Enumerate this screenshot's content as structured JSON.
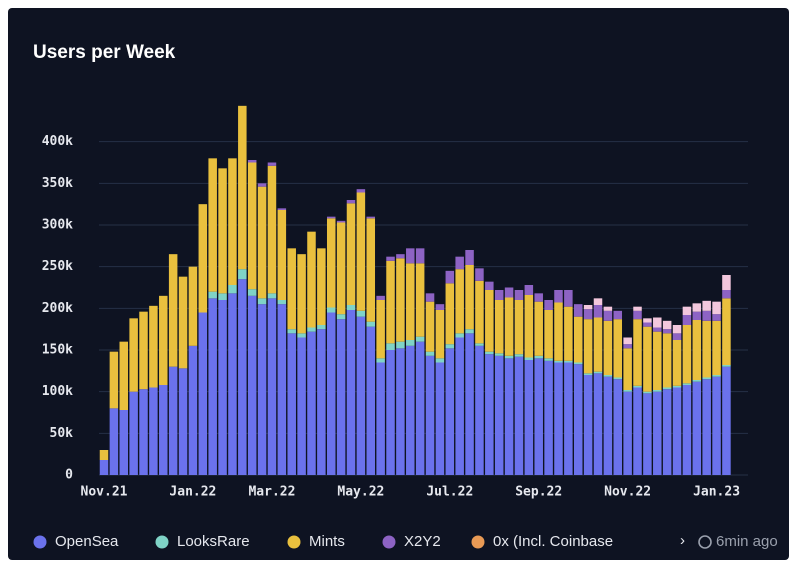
{
  "chart_data": {
    "type": "stacked_bar",
    "title": "Users per Week",
    "categories": [
      "Nov.21",
      null,
      null,
      null,
      null,
      null,
      null,
      null,
      null,
      "Jan.22",
      null,
      null,
      null,
      null,
      null,
      null,
      null,
      "Mar.22",
      null,
      null,
      null,
      null,
      null,
      null,
      null,
      null,
      "May.22",
      null,
      null,
      null,
      null,
      null,
      null,
      null,
      null,
      "Jul.22",
      null,
      null,
      null,
      null,
      null,
      null,
      null,
      null,
      "Sep.22",
      null,
      null,
      null,
      null,
      null,
      null,
      null,
      null,
      "Nov.22",
      null,
      null,
      null,
      null,
      null,
      null,
      null,
      null,
      "Jan.23",
      null
    ],
    "series": [
      {
        "name": "OpenSea",
        "color": "#6b72ec",
        "values": [
          18,
          80,
          78,
          100,
          103,
          105,
          108,
          130,
          128,
          155,
          195,
          212,
          210,
          218,
          235,
          215,
          205,
          212,
          205,
          170,
          165,
          172,
          175,
          195,
          187,
          198,
          190,
          178,
          135,
          150,
          152,
          155,
          160,
          143,
          135,
          152,
          165,
          170,
          155,
          145,
          143,
          140,
          142,
          138,
          140,
          137,
          135,
          135,
          133,
          120,
          122,
          118,
          115,
          100,
          105,
          98,
          100,
          103,
          105,
          108,
          112,
          115,
          118,
          130
        ]
      },
      {
        "name": "LooksRare",
        "color": "#7fd3c7",
        "values": [
          0,
          0,
          0,
          0,
          0,
          0,
          0,
          0,
          0,
          0,
          0,
          8,
          8,
          10,
          12,
          8,
          7,
          6,
          5,
          5,
          5,
          5,
          5,
          6,
          6,
          6,
          7,
          6,
          5,
          8,
          8,
          7,
          6,
          5,
          5,
          5,
          5,
          5,
          3,
          3,
          3,
          3,
          3,
          3,
          3,
          3,
          2,
          2,
          2,
          2,
          2,
          2,
          2,
          2,
          2,
          2,
          2,
          2,
          2,
          2,
          2,
          2,
          2,
          2
        ]
      },
      {
        "name": "Mints",
        "color": "#e9c03e",
        "values": [
          12,
          68,
          82,
          88,
          93,
          98,
          107,
          135,
          110,
          95,
          130,
          160,
          150,
          152,
          196,
          152,
          134,
          153,
          108,
          97,
          95,
          115,
          92,
          107,
          110,
          122,
          142,
          124,
          70,
          99,
          100,
          92,
          88,
          60,
          58,
          73,
          77,
          77,
          75,
          74,
          64,
          70,
          65,
          75,
          65,
          58,
          70,
          65,
          55,
          65,
          65,
          65,
          70,
          50,
          80,
          78,
          70,
          65,
          55,
          70,
          72,
          68,
          65,
          80
        ]
      },
      {
        "name": "X2Y2",
        "color": "#8d63c4",
        "values": [
          0,
          0,
          0,
          0,
          0,
          0,
          0,
          0,
          0,
          0,
          0,
          0,
          0,
          0,
          0,
          3,
          4,
          4,
          2,
          0,
          0,
          0,
          0,
          2,
          2,
          4,
          4,
          2,
          5,
          5,
          5,
          18,
          18,
          10,
          7,
          15,
          15,
          18,
          15,
          10,
          12,
          12,
          12,
          12,
          10,
          12,
          15,
          20,
          15,
          12,
          15,
          12,
          10,
          5,
          10,
          5,
          5,
          5,
          8,
          12,
          10,
          12,
          8,
          10
        ]
      },
      {
        "name": "0x (Incl. Coinbase",
        "color": "#e89a55",
        "values": [
          0,
          0,
          0,
          0,
          0,
          0,
          0,
          0,
          0,
          0,
          0,
          0,
          0,
          0,
          0,
          0,
          0,
          0,
          0,
          0,
          0,
          0,
          0,
          0,
          0,
          0,
          0,
          0,
          0,
          0,
          0,
          0,
          0,
          0,
          0,
          0,
          0,
          0,
          0,
          0,
          0,
          0,
          0,
          0,
          0,
          0,
          0,
          0,
          0,
          0,
          0,
          0,
          0,
          0,
          0,
          0,
          0,
          0,
          0,
          0,
          0,
          0,
          0,
          0
        ]
      },
      {
        "color": "#f3c7dd",
        "values": [
          0,
          0,
          0,
          0,
          0,
          0,
          0,
          0,
          0,
          0,
          0,
          0,
          0,
          0,
          0,
          0,
          0,
          0,
          0,
          0,
          0,
          0,
          0,
          0,
          0,
          0,
          0,
          0,
          0,
          0,
          0,
          0,
          0,
          0,
          0,
          0,
          0,
          0,
          0,
          0,
          0,
          0,
          0,
          0,
          0,
          0,
          0,
          0,
          0,
          5,
          8,
          5,
          0,
          8,
          5,
          5,
          12,
          10,
          10,
          10,
          10,
          12,
          15,
          18
        ]
      }
    ],
    "ylim": [
      0,
      450
    ],
    "yticks": [
      0,
      {
        "value": 50,
        "label": "50k"
      },
      {
        "value": 100,
        "label": "100k"
      },
      {
        "value": 150,
        "label": "150k"
      },
      {
        "value": 200,
        "label": "200k"
      },
      {
        "value": 250,
        "label": "250k"
      },
      {
        "value": 300,
        "label": "300k"
      },
      {
        "value": 350,
        "label": "350k"
      },
      {
        "value": 400,
        "label": "400k"
      }
    ],
    "grid": true,
    "updated": "6min ago"
  }
}
